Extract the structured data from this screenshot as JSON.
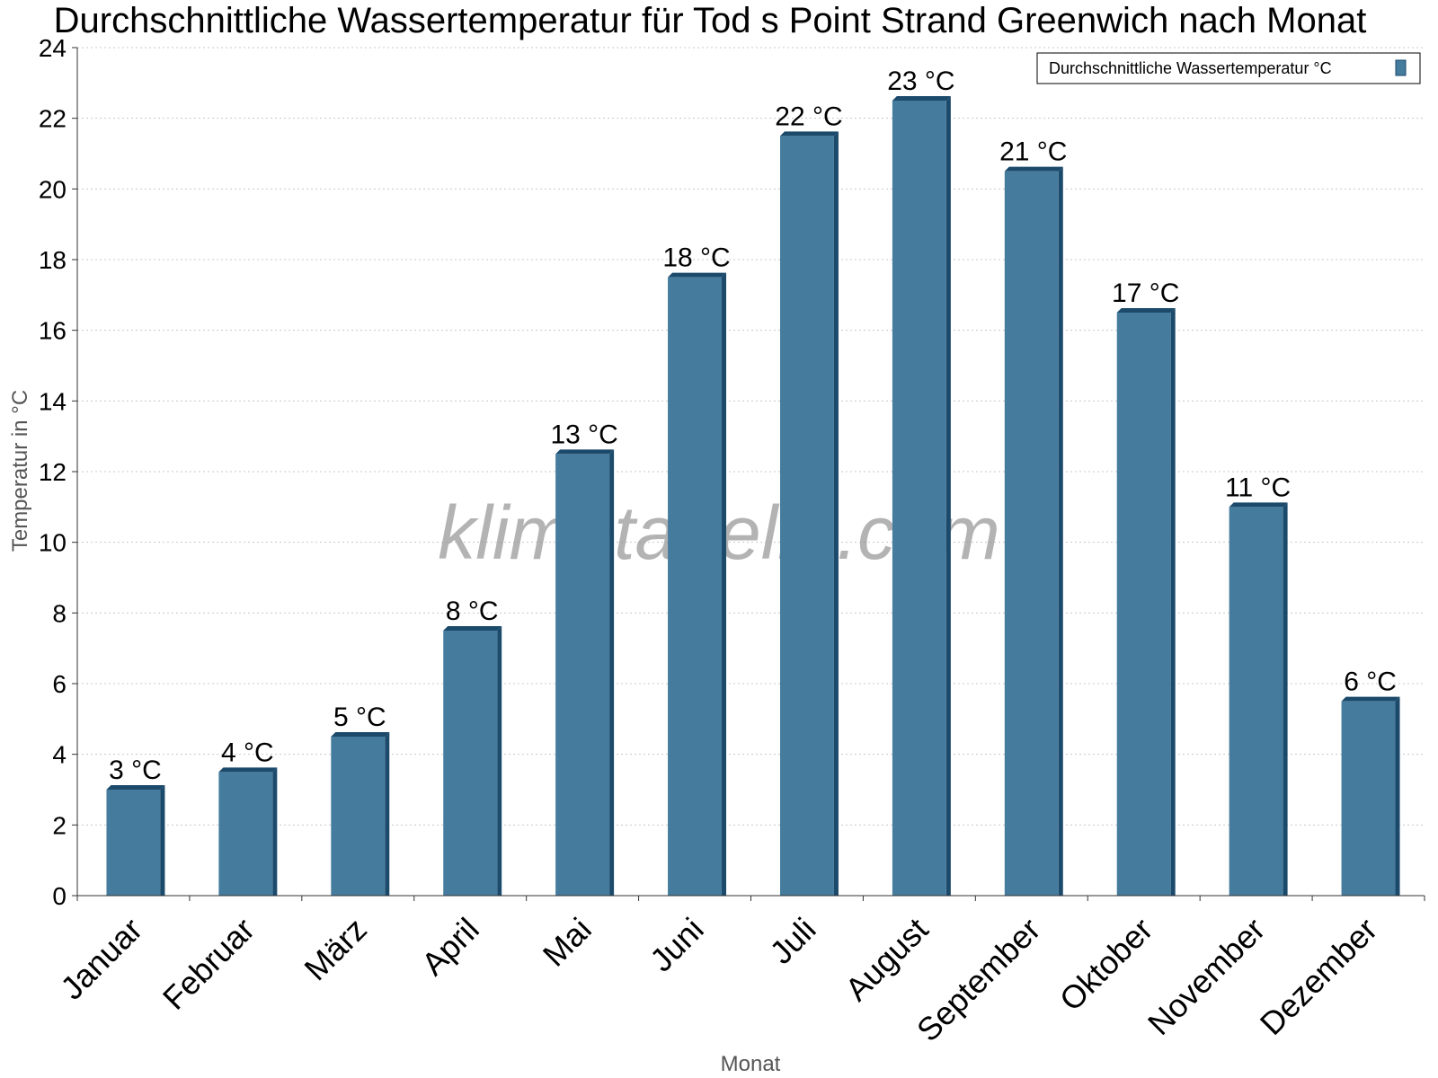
{
  "chart_data": {
    "type": "bar",
    "title": "Durchschnittliche Wassertemperatur für Tod s Point Strand Greenwich nach Monat",
    "xlabel": "Monat",
    "ylabel": "Temperatur in °C",
    "ylim": [
      0,
      24
    ],
    "yticks": [
      0,
      2,
      4,
      6,
      8,
      10,
      12,
      14,
      16,
      18,
      20,
      22,
      24
    ],
    "grid": true,
    "legend_position": "top-right",
    "categories": [
      "Januar",
      "Februar",
      "März",
      "April",
      "Mai",
      "Juni",
      "Juli",
      "August",
      "September",
      "Oktober",
      "November",
      "Dezember"
    ],
    "series": [
      {
        "name": "Durchschnittliche Wassertemperatur °C",
        "values": [
          3,
          3.5,
          4.5,
          7.5,
          12.5,
          17.5,
          21.5,
          22.5,
          20.5,
          16.5,
          11,
          5.5
        ],
        "labels": [
          "3 °C",
          "4 °C",
          "5 °C",
          "8 °C",
          "13 °C",
          "18 °C",
          "22 °C",
          "23 °C",
          "21 °C",
          "17 °C",
          "11 °C",
          "6 °C"
        ],
        "color": "#457b9d",
        "edge_color": "#1c4a6b"
      }
    ],
    "watermark": "klimatabelle.com"
  }
}
